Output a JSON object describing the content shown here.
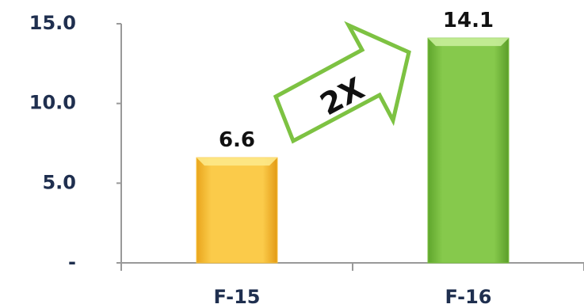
{
  "chart_data": {
    "type": "bar",
    "title": "",
    "xlabel": "",
    "ylabel": "",
    "categories": [
      "F-15",
      "F-16"
    ],
    "values": [
      6.6,
      14.1
    ],
    "data_labels": [
      "6.6",
      "14.1"
    ],
    "ylim": [
      0,
      15
    ],
    "y_ticks": [
      0,
      5,
      10,
      15
    ],
    "y_tick_labels": [
      "-",
      "5.0",
      "10.0",
      "15.0"
    ],
    "grid": false,
    "legend": "none",
    "bar_colors": [
      "#f9c23c",
      "#7dc242"
    ],
    "annotation": {
      "text": "2X",
      "shape": "arrow",
      "fill": "#ffffff",
      "stroke": "#7dc242"
    }
  }
}
